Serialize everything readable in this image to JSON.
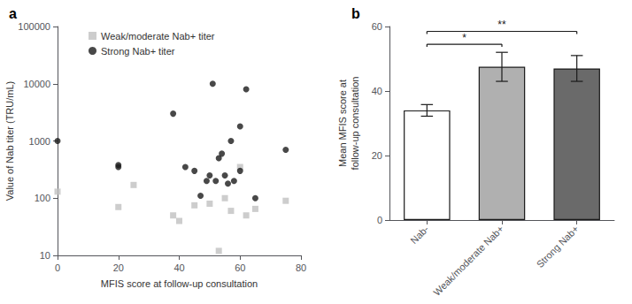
{
  "chart_data": [
    {
      "type": "scatter",
      "title": "a",
      "xlabel": "MFIS score at follow-up consultation",
      "ylabel": "Value of Nab titer (TRU/mL)",
      "series": [
        {
          "name": "Weak/moderate Nab+ titer",
          "color": "#c0c0c0",
          "marker": "square",
          "x": [
            0,
            20,
            25,
            38,
            40,
            45,
            50,
            53,
            55,
            57,
            60,
            62,
            65,
            75
          ],
          "values": [
            130,
            70,
            170,
            50,
            40,
            75,
            80,
            12,
            100,
            60,
            350,
            50,
            65,
            90
          ]
        },
        {
          "name": "Strong Nab+ titer",
          "color": "#1a1a1a",
          "marker": "circle",
          "x": [
            0,
            20,
            20,
            38,
            42,
            45,
            47,
            49,
            50,
            51,
            52,
            53,
            54,
            55,
            56,
            57,
            58,
            60,
            60,
            62,
            65,
            75
          ],
          "values": [
            1000,
            380,
            350,
            3000,
            350,
            300,
            110,
            200,
            250,
            10000,
            200,
            500,
            600,
            250,
            180,
            1000,
            200,
            1800,
            300,
            8000,
            100,
            700
          ]
        }
      ],
      "xlim": [
        0,
        80
      ],
      "ylim": [
        10,
        100000
      ],
      "xticks": [
        0,
        20,
        40,
        60,
        80
      ],
      "yticks": [
        10,
        100,
        1000,
        10000,
        100000
      ],
      "log": "y",
      "legend": "upper left",
      "grid": false
    },
    {
      "type": "bar",
      "title": "b",
      "categories": [
        "Nab-",
        "Weak/moderate Nab+",
        "Strong Nab+"
      ],
      "values": [
        34,
        47.5,
        47
      ],
      "errors": [
        1.8,
        4.5,
        4.0
      ],
      "colors": [
        "#ffffff",
        "#b0b0b0",
        "#6a6a6a"
      ],
      "ylabel": "Mean MFIS score at\nfollow-up consultation",
      "ylim": [
        0,
        60
      ],
      "yticks": [
        0,
        20,
        40,
        60
      ],
      "annotations": [
        {
          "from": "Nab-",
          "to": "Weak/moderate Nab+",
          "y": 54.5,
          "label": "*"
        },
        {
          "from": "Nab-",
          "to": "Strong Nab+",
          "y": 58.5,
          "label": "**"
        }
      ],
      "grid": false
    }
  ]
}
